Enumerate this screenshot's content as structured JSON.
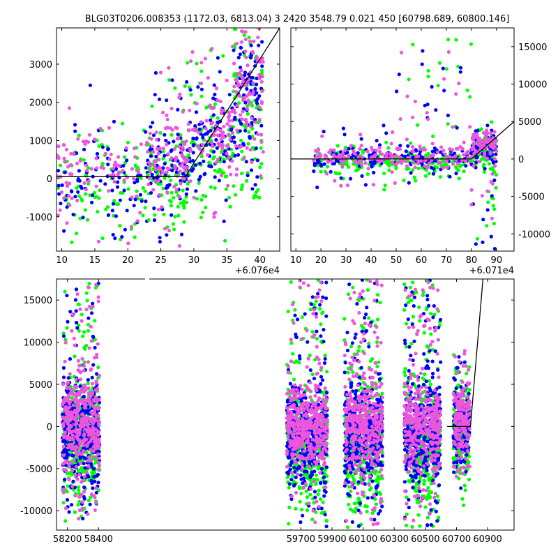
{
  "title": "BLG03T0206.008353 (1172.03, 6813.04)    3 2420 3548.79 0.021 450 [60798.689, 60800.146]",
  "colors": {
    "green": "#00ff00",
    "blue": "#0000ff",
    "pink": "#ee55dd",
    "model": "#000000"
  },
  "chart_data": [
    {
      "id": "top-left",
      "type": "scatter",
      "xlim": [
        9.2,
        43
      ],
      "ylim": [
        -1900,
        3950
      ],
      "xticks": [
        10,
        15,
        20,
        25,
        30,
        35,
        40
      ],
      "yticks": [
        -1000,
        0,
        1000,
        2000,
        3000
      ],
      "yaxis_side": "left",
      "offset_label": "+6.076e4",
      "model": {
        "x": [
          9.2,
          28.7,
          43
        ],
        "y": [
          50,
          50,
          3950
        ]
      },
      "clusters": [
        {
          "x": [
            9.2,
            23
          ],
          "y": [
            -1700,
            1600
          ],
          "band": [
            -600,
            700
          ]
        },
        {
          "x": [
            23,
            29
          ],
          "y": [
            -1800,
            3000
          ],
          "band": [
            -300,
            800
          ]
        },
        {
          "x": [
            29,
            36
          ],
          "y": [
            -1200,
            3500
          ],
          "band": [
            300,
            1500
          ]
        },
        {
          "x": [
            36,
            40.5
          ],
          "y": [
            -400,
            3950
          ],
          "band": [
            800,
            3000
          ]
        }
      ],
      "ymin_clip": -1900,
      "ymax_clip": 3950
    },
    {
      "id": "top-right",
      "type": "scatter",
      "xlim": [
        8,
        97
      ],
      "ylim": [
        -12300,
        17500
      ],
      "xticks": [
        10,
        20,
        30,
        40,
        50,
        60,
        70,
        80,
        90
      ],
      "yticks": [
        -10000,
        -5000,
        0,
        5000,
        10000,
        15000
      ],
      "yaxis_side": "right",
      "offset_label": "+6.071e4",
      "model": {
        "x": [
          8,
          80,
          97
        ],
        "y": [
          0,
          0,
          5000
        ]
      },
      "clusters": [
        {
          "x": [
            17,
            50
          ],
          "y": [
            -4500,
            4500
          ],
          "band": [
            -900,
            800
          ]
        },
        {
          "x": [
            50,
            80
          ],
          "y": [
            -3500,
            16200
          ],
          "band": [
            -900,
            900
          ]
        },
        {
          "x": [
            80,
            90
          ],
          "y": [
            -12000,
            4000
          ],
          "band": [
            500,
            3000
          ]
        }
      ]
    },
    {
      "id": "bottom",
      "type": "scatter",
      "xlim": [
        58130,
        61070
      ],
      "ylim": [
        -12300,
        17500
      ],
      "xticks": [
        58200,
        58400,
        59700,
        59900,
        60100,
        60300,
        60500,
        60700,
        60900
      ],
      "yticks": [
        -10000,
        -5000,
        0,
        5000,
        10000,
        15000
      ],
      "yaxis_side": "left",
      "offset_label": "",
      "model": {
        "x": [
          60640,
          60790,
          60870
        ],
        "y": [
          0,
          0,
          17500
        ]
      },
      "clusters": [
        {
          "x": [
            58168,
            58406
          ],
          "y": [
            -11000,
            17000
          ],
          "band": [
            -3500,
            2500
          ]
        },
        {
          "x": [
            59610,
            59870
          ],
          "y": [
            -12000,
            17500
          ],
          "band": [
            -4000,
            2000
          ]
        },
        {
          "x": [
            59980,
            60225
          ],
          "y": [
            -12000,
            17500
          ],
          "band": [
            -4000,
            2500
          ]
        },
        {
          "x": [
            60365,
            60598
          ],
          "y": [
            -12000,
            17500
          ],
          "band": [
            -4000,
            2500
          ]
        },
        {
          "x": [
            60680,
            60785
          ],
          "y": [
            -6000,
            9000
          ],
          "band": [
            -2500,
            3000
          ]
        }
      ]
    }
  ]
}
